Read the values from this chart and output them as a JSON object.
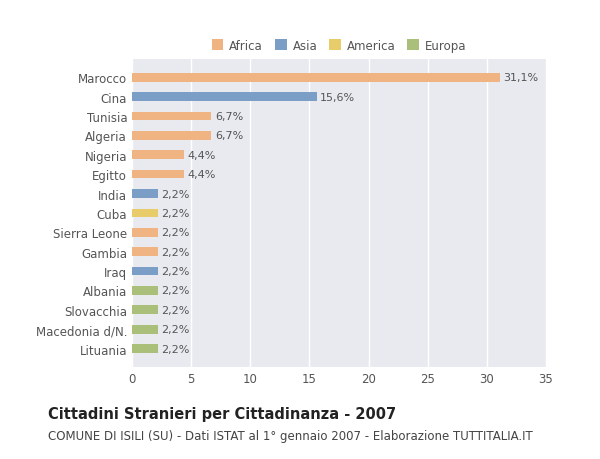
{
  "countries": [
    "Marocco",
    "Cina",
    "Tunisia",
    "Algeria",
    "Nigeria",
    "Egitto",
    "India",
    "Cuba",
    "Sierra Leone",
    "Gambia",
    "Iraq",
    "Albania",
    "Slovacchia",
    "Macedonia d/N.",
    "Lituania"
  ],
  "values": [
    31.1,
    15.6,
    6.7,
    6.7,
    4.4,
    4.4,
    2.2,
    2.2,
    2.2,
    2.2,
    2.2,
    2.2,
    2.2,
    2.2,
    2.2
  ],
  "labels": [
    "31,1%",
    "15,6%",
    "6,7%",
    "6,7%",
    "4,4%",
    "4,4%",
    "2,2%",
    "2,2%",
    "2,2%",
    "2,2%",
    "2,2%",
    "2,2%",
    "2,2%",
    "2,2%",
    "2,2%"
  ],
  "colors": [
    "#F0B482",
    "#7A9EC5",
    "#F0B482",
    "#F0B482",
    "#F0B482",
    "#F0B482",
    "#7A9EC5",
    "#E8CC6A",
    "#F0B482",
    "#F0B482",
    "#7A9EC5",
    "#AABF7A",
    "#AABF7A",
    "#AABF7A",
    "#AABF7A"
  ],
  "categories": [
    "Africa",
    "Asia",
    "America",
    "Europa"
  ],
  "legend_colors": [
    "#F0B482",
    "#7A9EC5",
    "#E8CC6A",
    "#AABF7A"
  ],
  "xlim": [
    0,
    35
  ],
  "xticks": [
    0,
    5,
    10,
    15,
    20,
    25,
    30,
    35
  ],
  "title": "Cittadini Stranieri per Cittadinanza - 2007",
  "subtitle": "COMUNE DI ISILI (SU) - Dati ISTAT al 1° gennaio 2007 - Elaborazione TUTTITALIA.IT",
  "title_fontsize": 10.5,
  "subtitle_fontsize": 8.5,
  "background_color": "#ffffff",
  "axes_bg_color": "#e8eaf0",
  "grid_color": "#ffffff",
  "bar_height": 0.45
}
